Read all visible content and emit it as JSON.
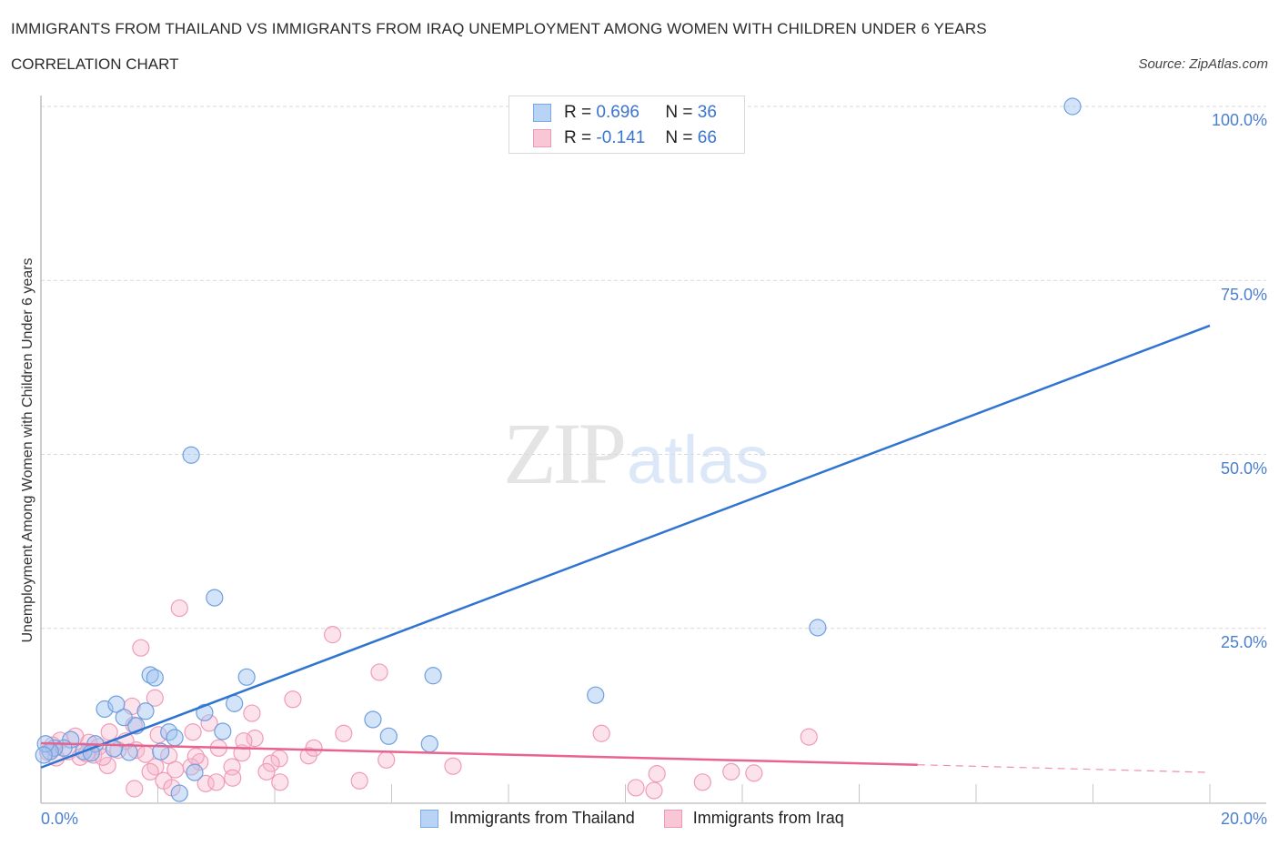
{
  "header": {
    "title": "IMMIGRANTS FROM THAILAND VS IMMIGRANTS FROM IRAQ UNEMPLOYMENT AMONG WOMEN WITH CHILDREN UNDER 6 YEARS",
    "subtitle": "CORRELATION CHART",
    "source": "Source: ZipAtlas.com"
  },
  "watermark": {
    "zip": "ZIP",
    "atlas": "atlas"
  },
  "legend_top": {
    "rows": [
      {
        "r_label": "R =",
        "r_value": "0.696",
        "n_label": "N =",
        "n_value": "36",
        "color": "#b9d3f5",
        "border": "#7aa7e6"
      },
      {
        "r_label": "R =",
        "r_value": "-0.141",
        "n_label": "N =",
        "n_value": "66",
        "color": "#f9c6d6",
        "border": "#ec9ab5"
      }
    ]
  },
  "legend_bottom": [
    {
      "label": "Immigrants from Thailand",
      "color": "#b9d3f5",
      "border": "#7aa7e6"
    },
    {
      "label": "Immigrants from Iraq",
      "color": "#f9c6d6",
      "border": "#ec9ab5"
    }
  ],
  "axes": {
    "ylabel": "Unemployment Among Women with Children Under 6 years",
    "yticks": [
      "100.0%",
      "75.0%",
      "50.0%",
      "25.0%"
    ],
    "xticks": [
      "0.0%",
      "20.0%"
    ]
  },
  "colors": {
    "blue_line": "#2f74d0",
    "pink_line": "#e8638e",
    "blue_fill": "rgba(160,196,240,0.45)",
    "blue_stroke": "#6f9fe0",
    "pink_fill": "rgba(248,182,204,0.40)",
    "pink_stroke": "#ef9cb8",
    "tick_text": "#4a7fd0"
  },
  "chart_data": {
    "type": "scatter",
    "title": "IMMIGRANTS FROM THAILAND VS IMMIGRANTS FROM IRAQ UNEMPLOYMENT AMONG WOMEN WITH CHILDREN UNDER 6 YEARS",
    "subtitle": "CORRELATION CHART",
    "xlabel": "",
    "ylabel": "Unemployment Among Women with Children Under 6 years",
    "xlim": [
      0,
      20
    ],
    "ylim": [
      0,
      100
    ],
    "x_tick_labels": [
      "0.0%",
      "20.0%"
    ],
    "y_tick_labels": [
      "25.0%",
      "50.0%",
      "75.0%",
      "100.0%"
    ],
    "grid": "horizontal dashed",
    "legend_position": "bottom",
    "series": [
      {
        "name": "Immigrants from Thailand",
        "R": 0.696,
        "N": 36,
        "trend": {
          "x": [
            0,
            20
          ],
          "y": [
            5.0,
            68.5
          ]
        },
        "points": [
          [
            17.65,
            100.0
          ],
          [
            2.57,
            49.9
          ],
          [
            2.97,
            29.4
          ],
          [
            13.29,
            25.1
          ],
          [
            1.87,
            18.3
          ],
          [
            1.95,
            17.9
          ],
          [
            3.52,
            18.0
          ],
          [
            6.71,
            18.2
          ],
          [
            9.49,
            15.4
          ],
          [
            1.09,
            13.4
          ],
          [
            1.29,
            14.1
          ],
          [
            1.79,
            13.1
          ],
          [
            3.31,
            14.2
          ],
          [
            2.8,
            12.9
          ],
          [
            1.42,
            12.2
          ],
          [
            1.63,
            11.0
          ],
          [
            3.11,
            10.2
          ],
          [
            2.19,
            10.1
          ],
          [
            2.29,
            9.3
          ],
          [
            5.68,
            11.9
          ],
          [
            5.95,
            9.5
          ],
          [
            6.65,
            8.4
          ],
          [
            2.05,
            7.3
          ],
          [
            1.51,
            7.2
          ],
          [
            1.25,
            7.7
          ],
          [
            0.93,
            8.4
          ],
          [
            0.73,
            7.3
          ],
          [
            0.51,
            9.0
          ],
          [
            0.39,
            7.8
          ],
          [
            0.23,
            7.8
          ],
          [
            0.16,
            7.3
          ],
          [
            0.08,
            8.4
          ],
          [
            0.05,
            6.8
          ],
          [
            2.63,
            4.3
          ],
          [
            2.37,
            1.3
          ],
          [
            0.86,
            7.1
          ]
        ]
      },
      {
        "name": "Immigrants from Iraq",
        "R": -0.141,
        "N": 66,
        "trend": {
          "x": [
            0,
            15,
            20
          ],
          "y": [
            8.5,
            5.4,
            4.3
          ],
          "dashed_after_x": 15
        },
        "points": [
          [
            2.37,
            27.9
          ],
          [
            4.99,
            24.1
          ],
          [
            1.71,
            22.2
          ],
          [
            5.79,
            18.7
          ],
          [
            1.95,
            15.0
          ],
          [
            4.31,
            14.8
          ],
          [
            1.56,
            13.8
          ],
          [
            2.88,
            11.4
          ],
          [
            1.59,
            11.1
          ],
          [
            1.17,
            10.1
          ],
          [
            3.61,
            12.8
          ],
          [
            5.18,
            9.9
          ],
          [
            3.66,
            9.2
          ],
          [
            2.01,
            9.7
          ],
          [
            2.6,
            10.1
          ],
          [
            9.59,
            9.9
          ],
          [
            13.14,
            9.4
          ],
          [
            1.45,
            8.8
          ],
          [
            0.59,
            9.5
          ],
          [
            0.82,
            8.6
          ],
          [
            0.99,
            8.0
          ],
          [
            0.33,
            8.9
          ],
          [
            0.2,
            8.2
          ],
          [
            0.12,
            7.2
          ],
          [
            0.47,
            7.3
          ],
          [
            1.63,
            7.5
          ],
          [
            2.19,
            6.7
          ],
          [
            3.44,
            7.1
          ],
          [
            4.58,
            6.7
          ],
          [
            4.08,
            6.3
          ],
          [
            3.94,
            5.6
          ],
          [
            7.05,
            5.2
          ],
          [
            1.14,
            5.3
          ],
          [
            1.96,
            5.1
          ],
          [
            2.3,
            4.7
          ],
          [
            2.72,
            5.8
          ],
          [
            3.27,
            5.1
          ],
          [
            0.9,
            6.8
          ],
          [
            0.67,
            6.5
          ],
          [
            1.87,
            4.4
          ],
          [
            2.1,
            3.1
          ],
          [
            1.6,
            1.96
          ],
          [
            2.24,
            2.1
          ],
          [
            2.82,
            2.7
          ],
          [
            3.0,
            2.9
          ],
          [
            3.28,
            3.5
          ],
          [
            3.86,
            4.4
          ],
          [
            4.09,
            2.9
          ],
          [
            5.45,
            3.1
          ],
          [
            10.18,
            2.1
          ],
          [
            10.49,
            1.7
          ],
          [
            10.54,
            4.1
          ],
          [
            11.32,
            2.9
          ],
          [
            11.81,
            4.4
          ],
          [
            12.2,
            4.2
          ],
          [
            2.57,
            5.1
          ],
          [
            1.32,
            7.5
          ],
          [
            0.26,
            6.4
          ],
          [
            0.78,
            7.0
          ],
          [
            1.06,
            6.5
          ],
          [
            1.79,
            6.9
          ],
          [
            3.04,
            7.8
          ],
          [
            2.65,
            6.6
          ],
          [
            3.47,
            8.8
          ],
          [
            4.67,
            7.8
          ],
          [
            5.91,
            6.1
          ]
        ]
      }
    ]
  }
}
